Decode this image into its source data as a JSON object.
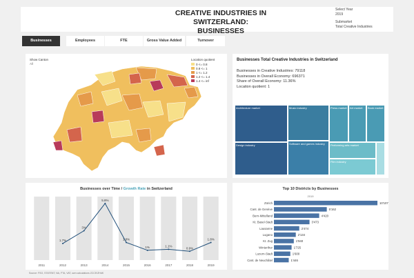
{
  "header": {
    "title_line1": "CREATIVE INDUSTRIES IN SWITZERLAND:",
    "title_line2": "BUSINESSES",
    "select_year_label": "Select Year",
    "select_year_value": "2019",
    "submarket_label": "Submarket",
    "submarket_value": "Total Creative Industries"
  },
  "tabs": [
    {
      "label": "Businesses",
      "active": true
    },
    {
      "label": "Employees",
      "active": false
    },
    {
      "label": "FTE",
      "active": false
    },
    {
      "label": "Gross Value Added",
      "active": false
    },
    {
      "label": "Turnover",
      "active": false
    }
  ],
  "map": {
    "show_canton_label": "Show Canton",
    "show_canton_value": "All",
    "legend_title": "Location quotient",
    "legend": [
      {
        "label": "0 <= 0.8",
        "color": "#f7e08a"
      },
      {
        "label": "0.8 <= 1",
        "color": "#f0bf5e"
      },
      {
        "label": "1 <= 1.2",
        "color": "#e59a4a"
      },
      {
        "label": "1.2 <= 1.4",
        "color": "#d4654c"
      },
      {
        "label": "1.4 <= inf",
        "color": "#b83b5a"
      }
    ]
  },
  "summary": {
    "title": "Businesses Total Creative Industries in Switzerland",
    "line1": "Businesses in Creative Industries: 79118",
    "line2": "Businesses in Overall Economy: 696371",
    "line3": "Share of Overall Economy: 11.36%",
    "line4": "Location quotient: 1"
  },
  "treemap": [
    {
      "label": "Architecture market",
      "color": "#2f5d8c"
    },
    {
      "label": "Design industry",
      "color": "#2f5d8c"
    },
    {
      "label": "Music industry",
      "color": "#3a7da0"
    },
    {
      "label": "Software and games industry",
      "color": "#3b7fa8"
    },
    {
      "label": "Press market",
      "color": "#4a9bb4"
    },
    {
      "label": "Art market",
      "color": "#4a9bb4"
    },
    {
      "label": "Book market",
      "color": "#4a9bb4"
    },
    {
      "label": "Performing arts market",
      "color": "#6cbcc8"
    },
    {
      "label": "Film industry",
      "color": "#7ccad3"
    }
  ],
  "chart_data": [
    {
      "type": "line",
      "title": "Businesses over Time / Growth Rate in Switzerland",
      "title_part1": "Businesses over Time / ",
      "title_part2": "Growth Rate",
      "title_part3": " in Switzerland",
      "x": [
        "2011",
        "2012",
        "2013",
        "2014",
        "2015",
        "2016",
        "2017",
        "2018",
        "2019"
      ],
      "series": [
        {
          "name": "Growth Rate",
          "values": [
            null,
            1.7,
            3.0,
            5.8,
            1.8,
            1.0,
            1.1,
            0.9,
            1.8
          ],
          "labels": [
            "",
            "1.7%",
            "3%",
            "5.8%",
            "1.8%",
            "1%",
            "1.1%",
            "0.9%",
            "1.8%"
          ]
        }
      ],
      "ylim": [
        0,
        6.5
      ]
    },
    {
      "type": "bar",
      "title": "Top 10 Districts by Businesses",
      "subtitle": "2019",
      "categories": [
        "Zürich",
        "Cant. de Genève",
        "Bern-Mittelland",
        "Kt. Basel-Stadt",
        "Lausanne",
        "Lugano",
        "Kt. Zug",
        "Winterthur",
        "Luzern-Stadt",
        "Cant. de Neuchâtel"
      ],
      "values": [
        10107,
        5162,
        4420,
        3473,
        2474,
        2134,
        1940,
        1725,
        1600,
        1446
      ],
      "value_labels": [
        "10'107",
        "5'162",
        "4'420",
        "3'473",
        "2'474",
        "2'134",
        "1'940",
        "1'725",
        "1'600",
        "1'446"
      ],
      "xlim": [
        0,
        10107
      ]
    }
  ],
  "source": "Source: FSO, STATENT, NA, FTA, VAT, own calculations ZCCE/ZHdK"
}
